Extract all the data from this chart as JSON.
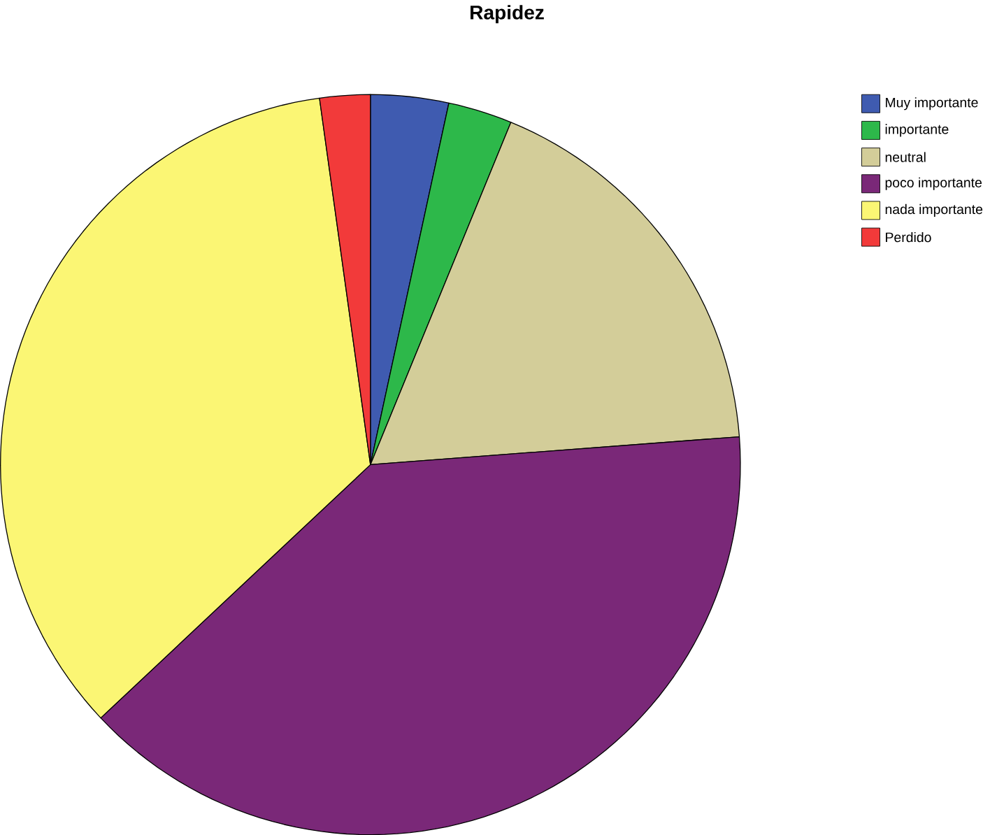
{
  "chart_data": {
    "type": "pie",
    "title": "Rapidez",
    "categories": [
      "Muy importante",
      "importante",
      "neutral",
      "poco importante",
      "nada importante",
      "Perdido"
    ],
    "values": [
      3.4,
      2.8,
      17.6,
      39.2,
      34.8,
      2.2
    ],
    "colors": [
      "#3f5bb0",
      "#2db84a",
      "#d3cd99",
      "#7a2878",
      "#fbf674",
      "#f23a3a"
    ],
    "legend": "top right"
  }
}
